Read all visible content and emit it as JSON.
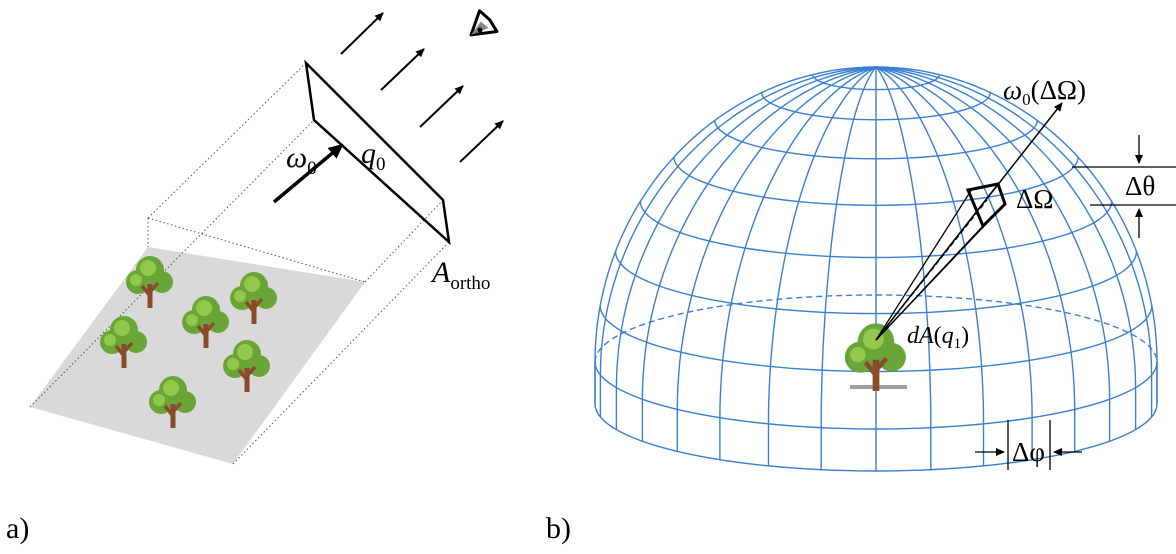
{
  "panel_a": {
    "label": "a)",
    "omega": "ω",
    "omega_sub": "0",
    "q": "q",
    "q_sub": "0",
    "A": "A",
    "A_sub": "ortho",
    "icons": [
      "eye-icon",
      "tree-icon"
    ]
  },
  "panel_b": {
    "label": "b)",
    "omega_dir": "ω",
    "omega_dir_sub": "0",
    "omega_dir_arg": "(ΔΩ)",
    "solid_angle": "ΔΩ",
    "delta_theta": "Δθ",
    "delta_phi": "Δφ",
    "dA_d": "dA",
    "dA_open": "(",
    "dA_q": "q",
    "dA_sub": "1",
    "dA_close": ")"
  },
  "colors": {
    "dome": "#3a7fd0",
    "ground": "#d9d9d9",
    "tree_canopy": "#6aa637",
    "tree_canopy_light": "#92c84c",
    "tree_trunk": "#8b4a2b",
    "base": "#9e9e9e"
  }
}
